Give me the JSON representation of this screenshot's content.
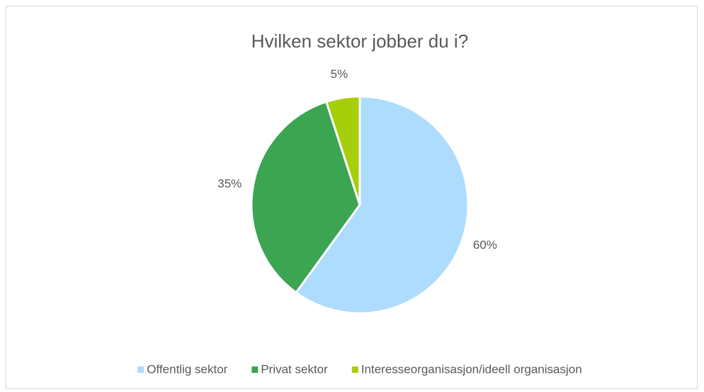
{
  "chart_data": {
    "type": "pie",
    "title": "Hvilken sektor jobber du i?",
    "categories": [
      "Offentlig sektor",
      "Privat sektor",
      "Interesseorganisasjon/ideell organisasjon"
    ],
    "values": [
      60,
      35,
      5
    ],
    "value_labels": [
      "60%",
      "35%",
      "5%"
    ],
    "colors": [
      "#addcff",
      "#3ba552",
      "#a6ce0a"
    ],
    "legend": "bottom"
  }
}
